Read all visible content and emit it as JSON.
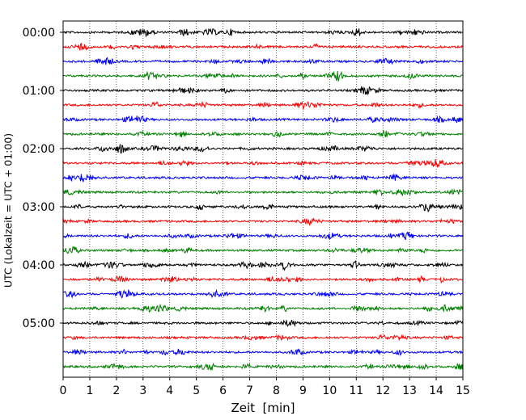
{
  "chart_data": {
    "type": "line",
    "subtype": "helicorder-seismogram",
    "title": "",
    "xlabel": "Zeit  [min]",
    "ylabel": "UTC (Lokalzeit = UTC + 01:00)",
    "xlim": [
      0,
      15
    ],
    "x_ticks": [
      "0",
      "1",
      "2",
      "3",
      "4",
      "5",
      "6",
      "7",
      "8",
      "9",
      "10",
      "11",
      "12",
      "13",
      "14",
      "15"
    ],
    "y_tick_labels": [
      "00:00",
      "01:00",
      "02:00",
      "03:00",
      "04:00",
      "05:00"
    ],
    "trace_interval_minutes": 15,
    "trace_count": 24,
    "trace_start_times": [
      "00:00",
      "00:15",
      "00:30",
      "00:45",
      "01:00",
      "01:15",
      "01:30",
      "01:45",
      "02:00",
      "02:15",
      "02:30",
      "02:45",
      "03:00",
      "03:15",
      "03:30",
      "03:45",
      "04:00",
      "04:15",
      "04:30",
      "04:45",
      "05:00",
      "05:15",
      "05:30",
      "05:45"
    ],
    "color_cycle": [
      "#000000",
      "#ff0000",
      "#0000ff",
      "#008000"
    ],
    "grid": {
      "x": true,
      "style": "dotted"
    }
  }
}
